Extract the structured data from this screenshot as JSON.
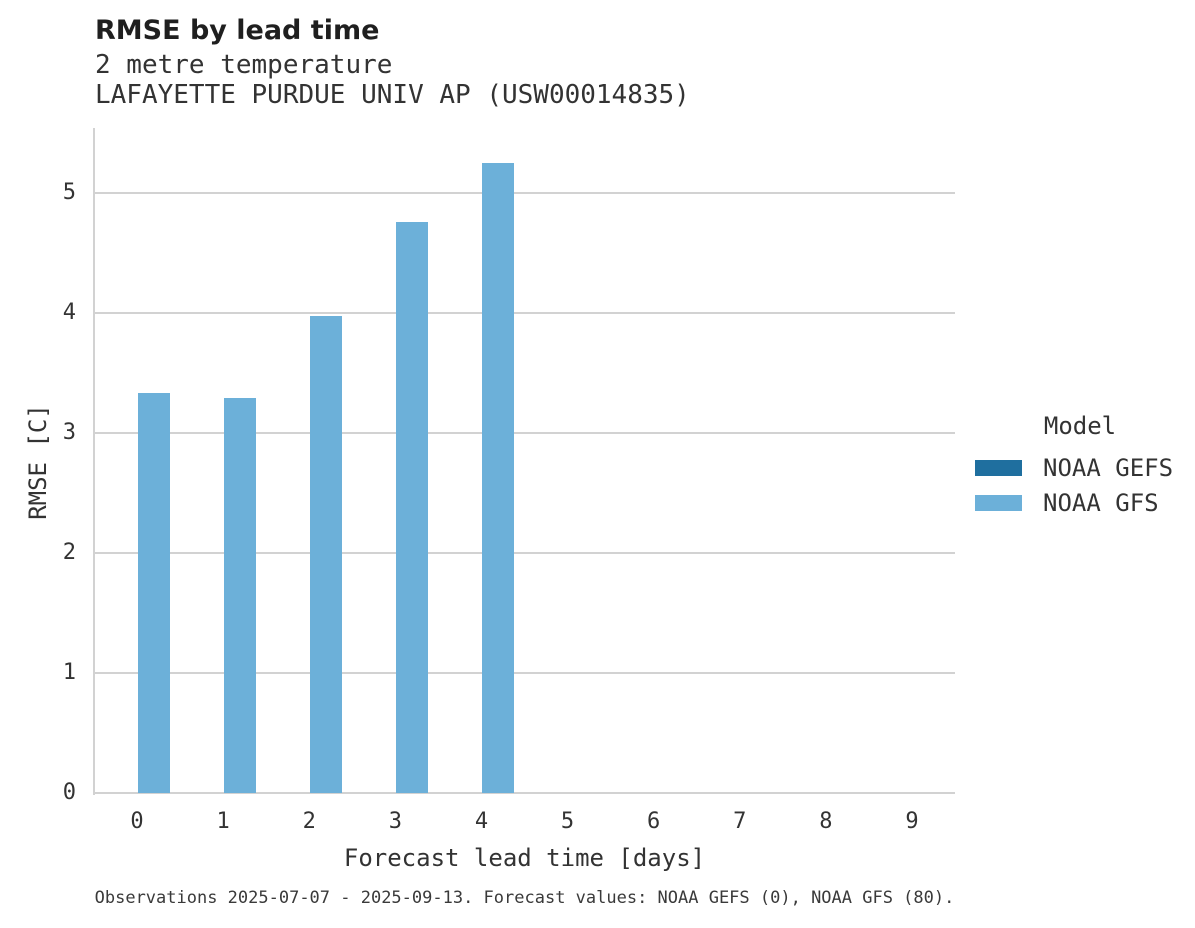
{
  "header": {
    "title": "RMSE by lead time",
    "subtitle_line1": "2 metre temperature",
    "subtitle_line2": "LAFAYETTE PURDUE UNIV AP (USW00014835)"
  },
  "chart_data": {
    "type": "bar",
    "title": "RMSE by lead time",
    "subtitle": [
      "2 metre temperature",
      "LAFAYETTE PURDUE UNIV AP (USW00014835)"
    ],
    "categories": [
      "0",
      "1",
      "2",
      "3",
      "4",
      "5",
      "6",
      "7",
      "8",
      "9"
    ],
    "series": [
      {
        "name": "NOAA GEFS",
        "color": "#1f6f9f",
        "values": [
          null,
          null,
          null,
          null,
          null,
          null,
          null,
          null,
          null,
          null
        ]
      },
      {
        "name": "NOAA GFS",
        "color": "#6cb0d9",
        "values": [
          3.33,
          3.29,
          3.97,
          4.76,
          5.25,
          null,
          null,
          null,
          null,
          null
        ]
      }
    ],
    "xlabel": "Forecast lead time [days]",
    "ylabel": "RMSE [C]",
    "ylim": [
      0,
      5.54
    ],
    "yticks": [
      0,
      1,
      2,
      3,
      4,
      5
    ],
    "grid": true,
    "legend_title": "Model",
    "legend_position": "right"
  },
  "legend": {
    "title": "Model",
    "items": [
      {
        "label": "NOAA GEFS",
        "color": "#1f6f9f"
      },
      {
        "label": "NOAA GFS",
        "color": "#6cb0d9"
      }
    ]
  },
  "footer": {
    "note": "Observations 2025-07-07 - 2025-09-13. Forecast values: NOAA GEFS (0), NOAA GFS (80)."
  },
  "colors": {
    "gridline": "#d2d2d2",
    "text": "#333333",
    "title_text": "#1f1f1f",
    "noaa_gefs": "#1f6f9f",
    "noaa_gfs": "#6cb0d9"
  }
}
